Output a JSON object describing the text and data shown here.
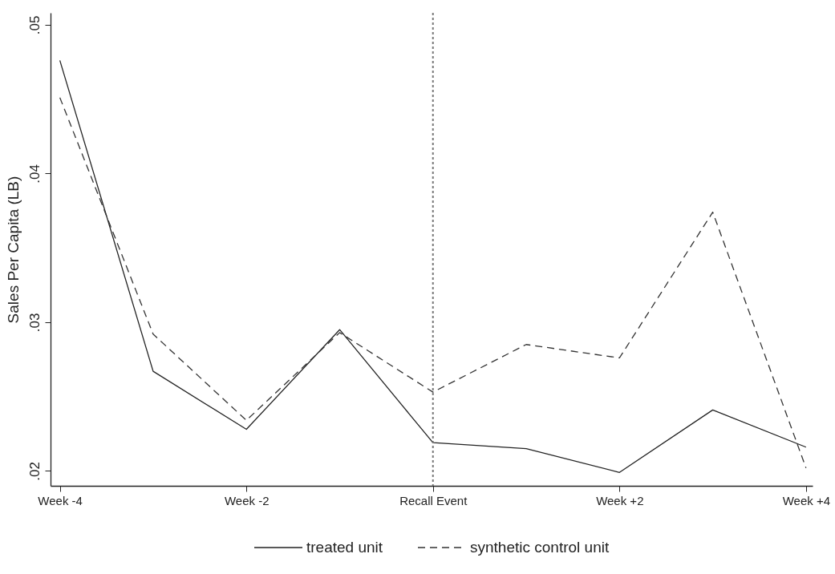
{
  "chart_data": {
    "type": "line",
    "ylabel": "Sales Per Capita (LB)",
    "x": [
      -4,
      -3,
      -2,
      -1,
      0,
      1,
      2,
      3,
      4
    ],
    "xlim": [
      -4.1,
      4.07
    ],
    "xticks": [
      {
        "value": -4,
        "label": "Week -4"
      },
      {
        "value": -2,
        "label": "Week -2"
      },
      {
        "value": 0,
        "label": "Recall Event"
      },
      {
        "value": 2,
        "label": "Week +2"
      },
      {
        "value": 4,
        "label": "Week +4"
      }
    ],
    "ylim": [
      0.019,
      0.0508
    ],
    "yticks": [
      {
        "value": 0.02,
        "label": ".02"
      },
      {
        "value": 0.03,
        "label": ".03"
      },
      {
        "value": 0.04,
        "label": ".04"
      },
      {
        "value": 0.05,
        "label": ".05"
      }
    ],
    "series": [
      {
        "name": "treated unit",
        "color": "#222222",
        "line_style": "solid",
        "values": [
          0.0476,
          0.0267,
          0.0228,
          0.0295,
          0.0219,
          0.0215,
          0.0199,
          0.0241,
          0.0216
        ]
      },
      {
        "name": "synthetic control unit",
        "color": "#333333",
        "line_style": "dashed",
        "values": [
          0.0451,
          0.0292,
          0.0234,
          0.0293,
          0.0253,
          0.0285,
          0.0276,
          0.0374,
          0.0202
        ]
      }
    ],
    "ref_lines": [
      {
        "axis": "x",
        "value": 0,
        "color": "#777777",
        "line_style": "dotted"
      }
    ],
    "grid": false,
    "legend": "bottom",
    "marker": "none"
  }
}
